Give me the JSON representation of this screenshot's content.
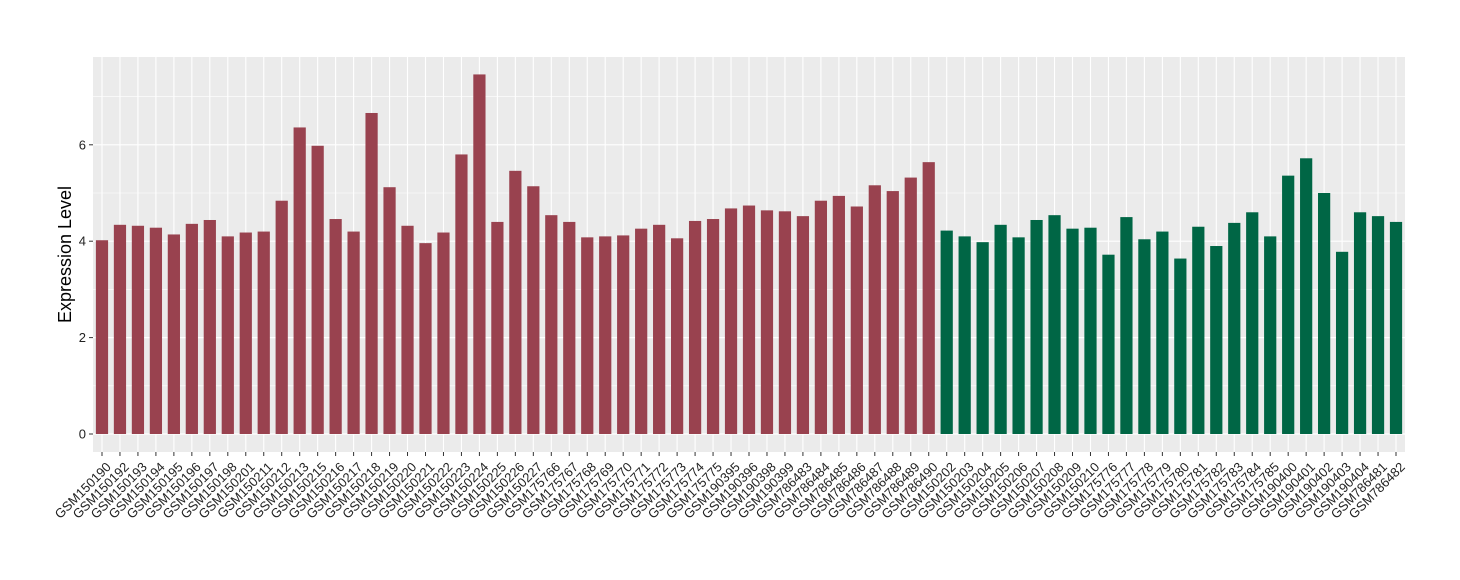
{
  "chart_data": {
    "type": "bar",
    "title": "",
    "xlabel": "",
    "ylabel": "Expression Level",
    "ylim": [
      -0.35,
      7.85
    ],
    "yticks": [
      0,
      2,
      4,
      6
    ],
    "grid": true,
    "colors": {
      "group1": "#99424F",
      "group2": "#006645",
      "panel": "#EBEBEB",
      "grid": "#FFFFFF"
    },
    "bars": [
      {
        "label": "GSM150190",
        "value": 4.02,
        "group": "group1"
      },
      {
        "label": "GSM150192",
        "value": 4.34,
        "group": "group1"
      },
      {
        "label": "GSM150193",
        "value": 4.32,
        "group": "group1"
      },
      {
        "label": "GSM150194",
        "value": 4.28,
        "group": "group1"
      },
      {
        "label": "GSM150195",
        "value": 4.14,
        "group": "group1"
      },
      {
        "label": "GSM150196",
        "value": 4.36,
        "group": "group1"
      },
      {
        "label": "GSM150197",
        "value": 4.44,
        "group": "group1"
      },
      {
        "label": "GSM150198",
        "value": 4.1,
        "group": "group1"
      },
      {
        "label": "GSM150201",
        "value": 4.18,
        "group": "group1"
      },
      {
        "label": "GSM150211",
        "value": 4.2,
        "group": "group1"
      },
      {
        "label": "GSM150212",
        "value": 4.84,
        "group": "group1"
      },
      {
        "label": "GSM150213",
        "value": 6.36,
        "group": "group1"
      },
      {
        "label": "GSM150215",
        "value": 5.98,
        "group": "group1"
      },
      {
        "label": "GSM150216",
        "value": 4.46,
        "group": "group1"
      },
      {
        "label": "GSM150217",
        "value": 4.2,
        "group": "group1"
      },
      {
        "label": "GSM150218",
        "value": 6.66,
        "group": "group1"
      },
      {
        "label": "GSM150219",
        "value": 5.12,
        "group": "group1"
      },
      {
        "label": "GSM150220",
        "value": 4.32,
        "group": "group1"
      },
      {
        "label": "GSM150221",
        "value": 3.96,
        "group": "group1"
      },
      {
        "label": "GSM150222",
        "value": 4.18,
        "group": "group1"
      },
      {
        "label": "GSM150223",
        "value": 5.8,
        "group": "group1"
      },
      {
        "label": "GSM150224",
        "value": 7.46,
        "group": "group1"
      },
      {
        "label": "GSM150225",
        "value": 4.4,
        "group": "group1"
      },
      {
        "label": "GSM150226",
        "value": 5.46,
        "group": "group1"
      },
      {
        "label": "GSM150227",
        "value": 5.14,
        "group": "group1"
      },
      {
        "label": "GSM175766",
        "value": 4.54,
        "group": "group1"
      },
      {
        "label": "GSM175767",
        "value": 4.4,
        "group": "group1"
      },
      {
        "label": "GSM175768",
        "value": 4.08,
        "group": "group1"
      },
      {
        "label": "GSM175769",
        "value": 4.1,
        "group": "group1"
      },
      {
        "label": "GSM175770",
        "value": 4.12,
        "group": "group1"
      },
      {
        "label": "GSM175771",
        "value": 4.26,
        "group": "group1"
      },
      {
        "label": "GSM175772",
        "value": 4.34,
        "group": "group1"
      },
      {
        "label": "GSM175773",
        "value": 4.06,
        "group": "group1"
      },
      {
        "label": "GSM175774",
        "value": 4.42,
        "group": "group1"
      },
      {
        "label": "GSM175775",
        "value": 4.46,
        "group": "group1"
      },
      {
        "label": "GSM190395",
        "value": 4.68,
        "group": "group1"
      },
      {
        "label": "GSM190396",
        "value": 4.74,
        "group": "group1"
      },
      {
        "label": "GSM190398",
        "value": 4.64,
        "group": "group1"
      },
      {
        "label": "GSM190399",
        "value": 4.62,
        "group": "group1"
      },
      {
        "label": "GSM786483",
        "value": 4.52,
        "group": "group1"
      },
      {
        "label": "GSM786484",
        "value": 4.84,
        "group": "group1"
      },
      {
        "label": "GSM786485",
        "value": 4.94,
        "group": "group1"
      },
      {
        "label": "GSM786486",
        "value": 4.72,
        "group": "group1"
      },
      {
        "label": "GSM786487",
        "value": 5.16,
        "group": "group1"
      },
      {
        "label": "GSM786488",
        "value": 5.04,
        "group": "group1"
      },
      {
        "label": "GSM786489",
        "value": 5.32,
        "group": "group1"
      },
      {
        "label": "GSM786490",
        "value": 5.64,
        "group": "group1"
      },
      {
        "label": "GSM150202",
        "value": 4.22,
        "group": "group2"
      },
      {
        "label": "GSM150203",
        "value": 4.1,
        "group": "group2"
      },
      {
        "label": "GSM150204",
        "value": 3.98,
        "group": "group2"
      },
      {
        "label": "GSM150205",
        "value": 4.34,
        "group": "group2"
      },
      {
        "label": "GSM150206",
        "value": 4.08,
        "group": "group2"
      },
      {
        "label": "GSM150207",
        "value": 4.44,
        "group": "group2"
      },
      {
        "label": "GSM150208",
        "value": 4.54,
        "group": "group2"
      },
      {
        "label": "GSM150209",
        "value": 4.26,
        "group": "group2"
      },
      {
        "label": "GSM150210",
        "value": 4.28,
        "group": "group2"
      },
      {
        "label": "GSM175776",
        "value": 3.72,
        "group": "group2"
      },
      {
        "label": "GSM175777",
        "value": 4.5,
        "group": "group2"
      },
      {
        "label": "GSM175778",
        "value": 4.04,
        "group": "group2"
      },
      {
        "label": "GSM175779",
        "value": 4.2,
        "group": "group2"
      },
      {
        "label": "GSM175780",
        "value": 3.64,
        "group": "group2"
      },
      {
        "label": "GSM175781",
        "value": 4.3,
        "group": "group2"
      },
      {
        "label": "GSM175782",
        "value": 3.9,
        "group": "group2"
      },
      {
        "label": "GSM175783",
        "value": 4.38,
        "group": "group2"
      },
      {
        "label": "GSM175784",
        "value": 4.6,
        "group": "group2"
      },
      {
        "label": "GSM175785",
        "value": 4.1,
        "group": "group2"
      },
      {
        "label": "GSM190400",
        "value": 5.36,
        "group": "group2"
      },
      {
        "label": "GSM190401",
        "value": 5.72,
        "group": "group2"
      },
      {
        "label": "GSM190402",
        "value": 5.0,
        "group": "group2"
      },
      {
        "label": "GSM190403",
        "value": 3.78,
        "group": "group2"
      },
      {
        "label": "GSM190404",
        "value": 4.6,
        "group": "group2"
      },
      {
        "label": "GSM786481",
        "value": 4.52,
        "group": "group2"
      },
      {
        "label": "GSM786482",
        "value": 4.4,
        "group": "group2"
      }
    ]
  }
}
